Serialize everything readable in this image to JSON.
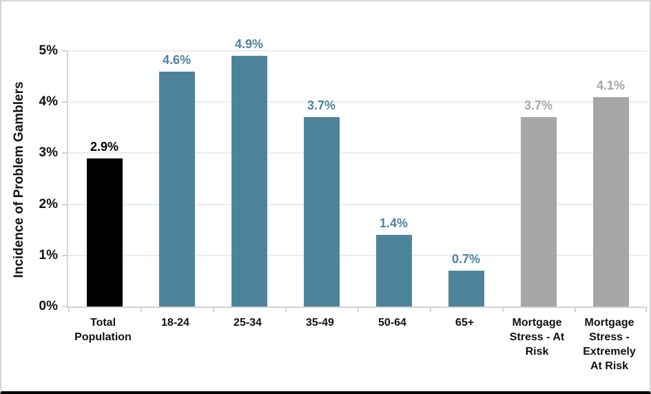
{
  "chart_data": {
    "type": "bar",
    "title": "",
    "xlabel": "",
    "ylabel": "Incidence of Problem Gamblers",
    "ylim": [
      0,
      5
    ],
    "grid": true,
    "legend_position": "none",
    "ytick_labels": [
      "0%",
      "1%",
      "2%",
      "3%",
      "4%",
      "5%"
    ],
    "categories": [
      "Total Population",
      "18-24",
      "25-34",
      "35-49",
      "50-64",
      "65+",
      "Mortgage Stress - At Risk",
      "Mortgage Stress - Extremely At Risk"
    ],
    "category_display": [
      "Total\nPopulation",
      "18-24",
      "25-34",
      "35-49",
      "50-64",
      "65+",
      "Mortgage\nStress - At\nRisk",
      "Mortgage\nStress -\nExtremely\nAt Risk"
    ],
    "values": [
      2.9,
      4.6,
      4.9,
      3.7,
      1.4,
      0.7,
      3.7,
      4.1
    ],
    "value_labels": [
      "2.9%",
      "4.6%",
      "4.9%",
      "3.7%",
      "1.4%",
      "0.7%",
      "3.7%",
      "4.1%"
    ],
    "bar_colors": [
      "#000000",
      "#4e839c",
      "#4e839c",
      "#4e839c",
      "#4e839c",
      "#4e839c",
      "#a6a6a6",
      "#a6a6a6"
    ],
    "label_colors": [
      "#000000",
      "#4d82a1",
      "#4d82a1",
      "#4d82a1",
      "#4d82a1",
      "#4d82a1",
      "#a6a6a6",
      "#a6a6a6"
    ]
  },
  "colors": {
    "background": "#ffffff",
    "gridline": "#ececec",
    "axis_line": "#d2d2d2",
    "text": "#111111",
    "teal_series": "#4e839c",
    "gray_series": "#a6a6a6",
    "black_series": "#000000"
  }
}
